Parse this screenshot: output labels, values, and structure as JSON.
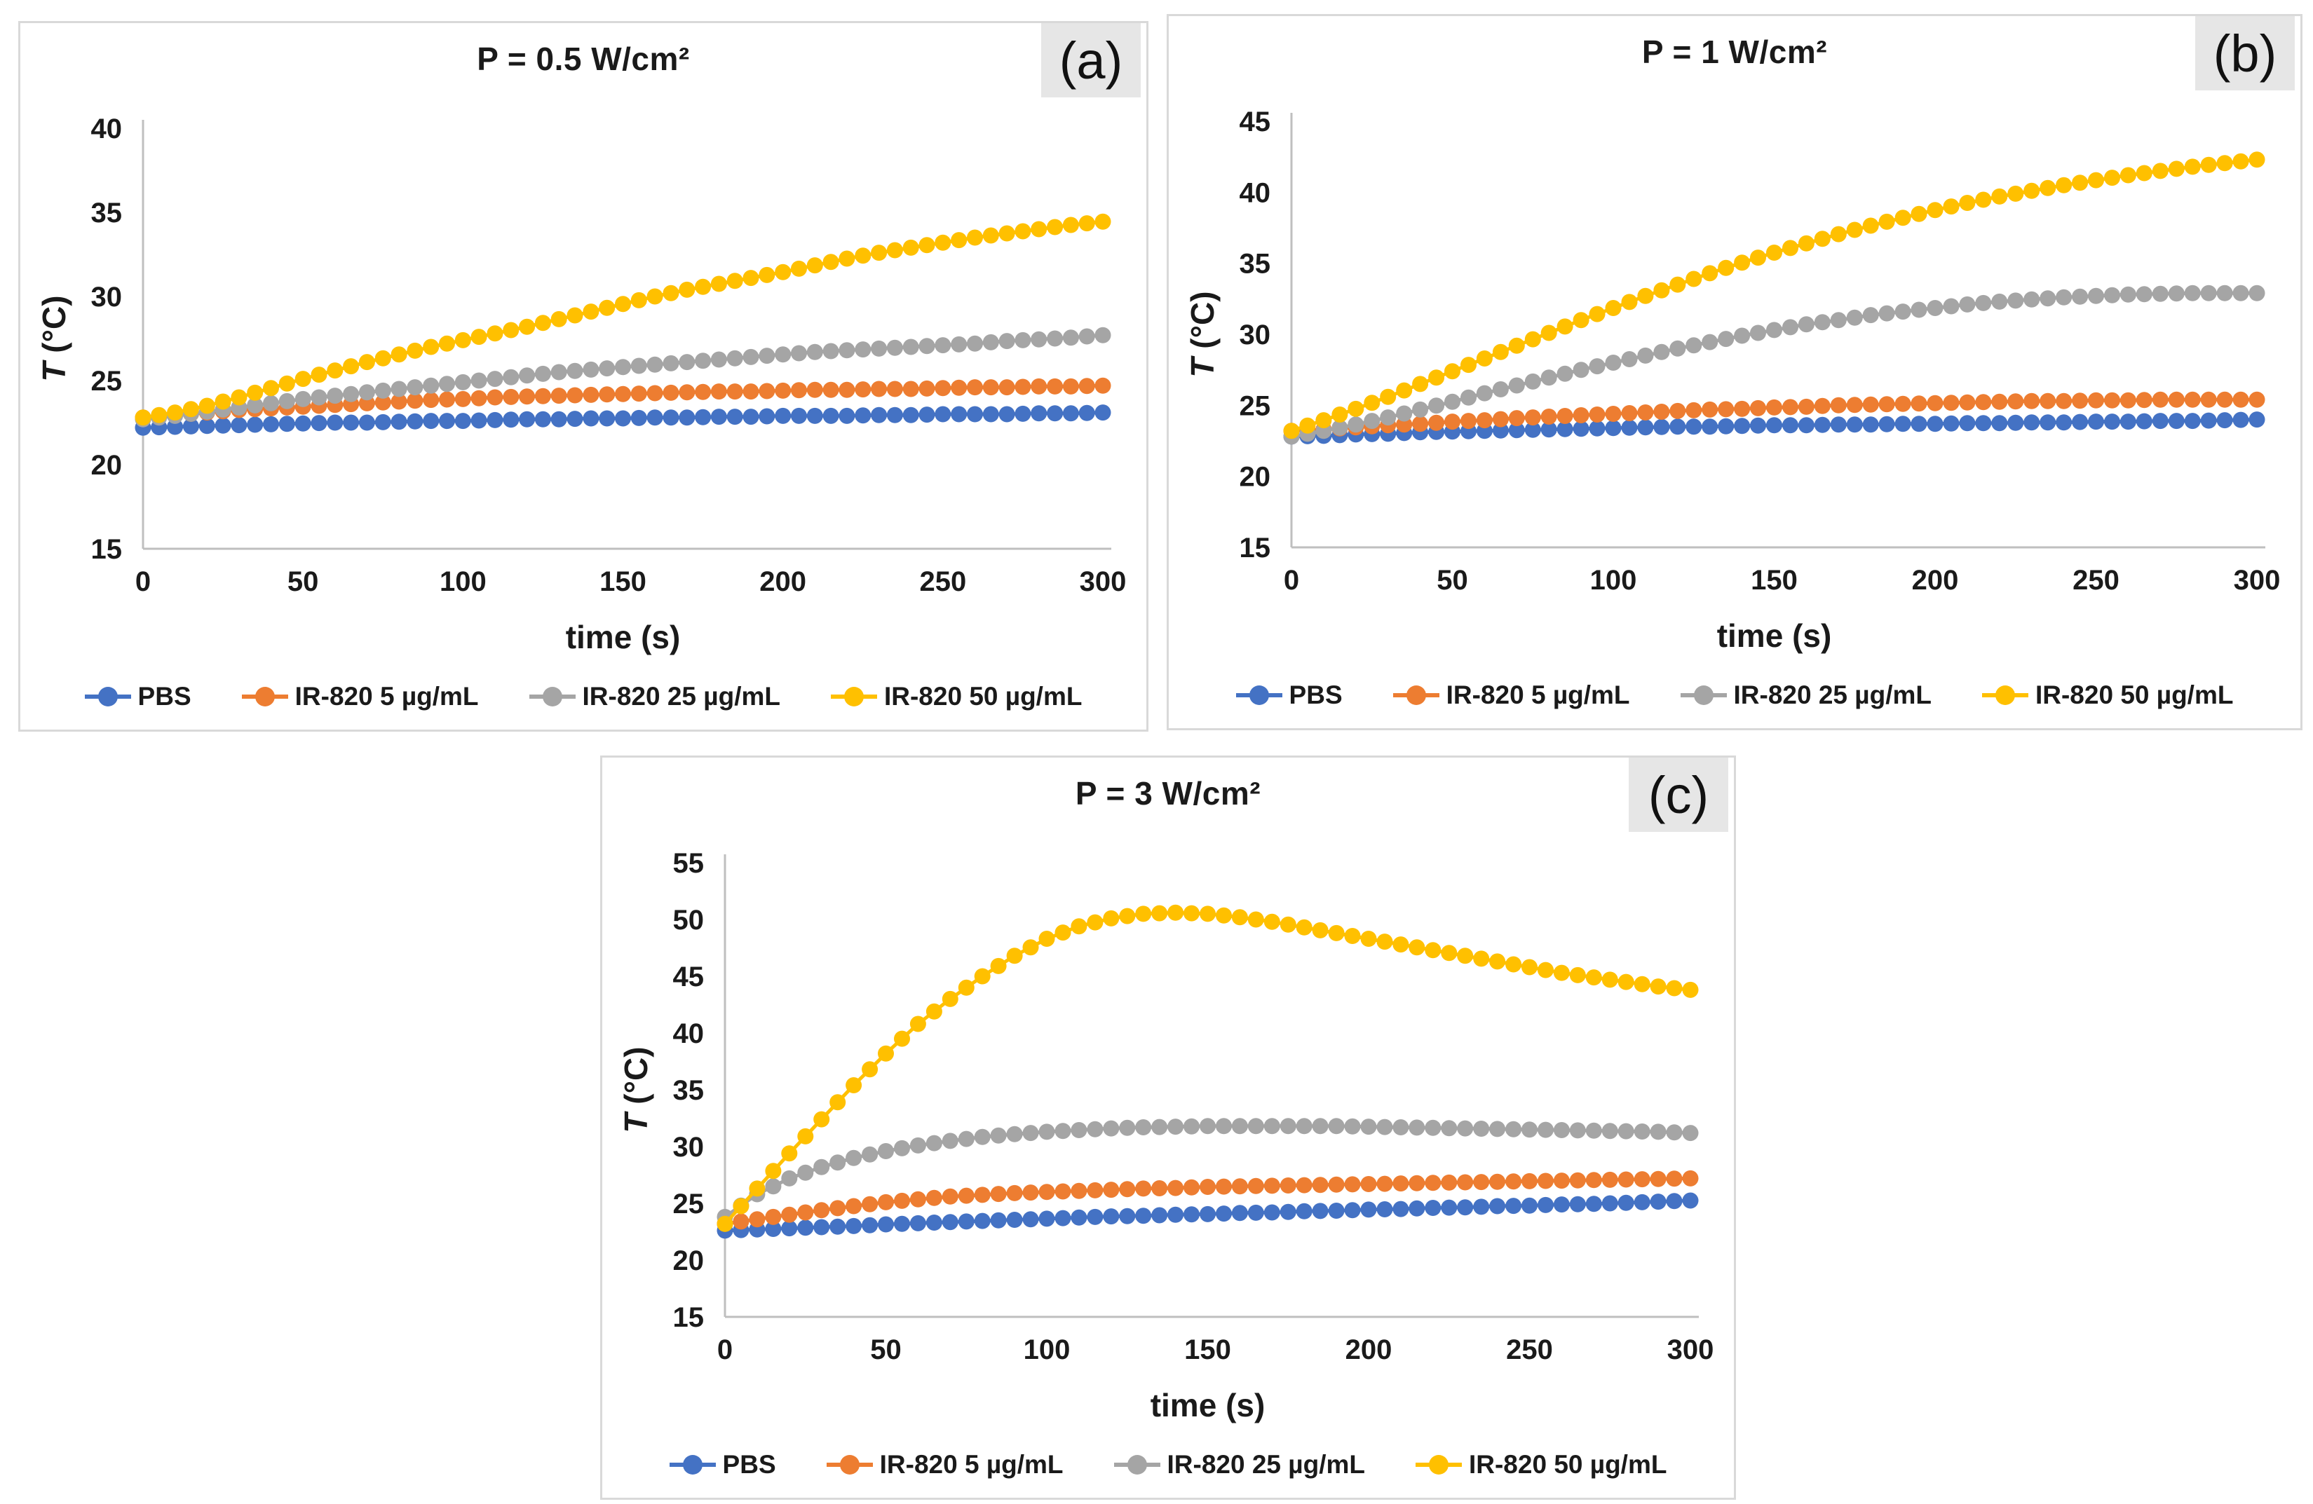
{
  "figure": {
    "background": "#ffffff",
    "panel_border_color": "#d9d9d9",
    "corner_label_bg": "#e6e6e6",
    "axis_line_color": "#bfbfbf",
    "text_color": "#1a1a1a"
  },
  "legend": {
    "items": [
      {
        "label": "PBS",
        "color": "#4472C4"
      },
      {
        "label": "IR-820 5 µg/mL",
        "color": "#ED7D31"
      },
      {
        "label": "IR-820 25 µg/mL",
        "color": "#A5A5A5"
      },
      {
        "label": "IR-820 50 µg/mL",
        "color": "#FFC000"
      }
    ]
  },
  "chart_data": [
    {
      "id": "a",
      "type": "line",
      "panel_label": "(a)",
      "title": "P = 0.5 W/cm²",
      "xlabel": "time (s)",
      "ylabel": "T (°C)",
      "ylabel_italic": "T",
      "ylabel_unit": " (°C)",
      "grid": false,
      "legend_position": "bottom",
      "xlim": [
        0,
        300
      ],
      "ylim": [
        15,
        40
      ],
      "xticks": [
        0,
        50,
        100,
        150,
        200,
        250,
        300
      ],
      "yticks": [
        15,
        20,
        25,
        30,
        35,
        40
      ],
      "x": [
        0,
        10,
        20,
        30,
        40,
        50,
        60,
        70,
        80,
        90,
        100,
        110,
        120,
        130,
        140,
        150,
        160,
        170,
        180,
        190,
        200,
        210,
        220,
        230,
        240,
        250,
        260,
        270,
        280,
        290,
        300
      ],
      "series": [
        {
          "name": "PBS",
          "color": "#4472C4",
          "values": [
            22.2,
            22.25,
            22.3,
            22.35,
            22.4,
            22.45,
            22.5,
            22.5,
            22.55,
            22.6,
            22.6,
            22.65,
            22.7,
            22.7,
            22.75,
            22.75,
            22.8,
            22.8,
            22.85,
            22.85,
            22.9,
            22.9,
            22.9,
            22.95,
            22.95,
            23.0,
            23.0,
            23.0,
            23.05,
            23.05,
            23.1
          ]
        },
        {
          "name": "IR-820 5 µg/mL",
          "color": "#ED7D31",
          "values": [
            22.8,
            22.95,
            23.1,
            23.25,
            23.35,
            23.45,
            23.55,
            23.65,
            23.75,
            23.85,
            23.9,
            24.0,
            24.05,
            24.1,
            24.15,
            24.2,
            24.25,
            24.3,
            24.35,
            24.35,
            24.4,
            24.45,
            24.45,
            24.5,
            24.5,
            24.55,
            24.6,
            24.6,
            24.65,
            24.65,
            24.7
          ]
        },
        {
          "name": "IR-820 25 µg/mL",
          "color": "#A5A5A5",
          "values": [
            22.7,
            22.9,
            23.15,
            23.4,
            23.65,
            23.9,
            24.1,
            24.3,
            24.5,
            24.7,
            24.9,
            25.1,
            25.3,
            25.5,
            25.65,
            25.8,
            25.95,
            26.1,
            26.25,
            26.4,
            26.55,
            26.7,
            26.8,
            26.9,
            27.0,
            27.1,
            27.2,
            27.35,
            27.45,
            27.55,
            27.7
          ]
        },
        {
          "name": "IR-820 50 µg/mL",
          "color": "#FFC000",
          "values": [
            22.8,
            23.1,
            23.5,
            24.0,
            24.55,
            25.1,
            25.6,
            26.1,
            26.55,
            27.0,
            27.4,
            27.8,
            28.2,
            28.65,
            29.1,
            29.55,
            30.0,
            30.4,
            30.75,
            31.1,
            31.45,
            31.85,
            32.25,
            32.6,
            32.9,
            33.2,
            33.5,
            33.75,
            34.0,
            34.25,
            34.45
          ]
        }
      ]
    },
    {
      "id": "b",
      "type": "line",
      "panel_label": "(b)",
      "title": "P = 1 W/cm²",
      "xlabel": "time (s)",
      "ylabel": "T (°C)",
      "ylabel_italic": "T",
      "ylabel_unit": " (°C)",
      "grid": false,
      "legend_position": "bottom",
      "xlim": [
        0,
        300
      ],
      "ylim": [
        15,
        45
      ],
      "xticks": [
        0,
        50,
        100,
        150,
        200,
        250,
        300
      ],
      "yticks": [
        15,
        20,
        25,
        30,
        35,
        40,
        45
      ],
      "x": [
        0,
        10,
        20,
        30,
        40,
        50,
        60,
        70,
        80,
        90,
        100,
        110,
        120,
        130,
        140,
        150,
        160,
        170,
        180,
        190,
        200,
        210,
        220,
        230,
        240,
        250,
        260,
        270,
        280,
        290,
        300
      ],
      "series": [
        {
          "name": "PBS",
          "color": "#4472C4",
          "values": [
            22.8,
            22.85,
            22.95,
            23.0,
            23.1,
            23.15,
            23.2,
            23.25,
            23.3,
            23.35,
            23.4,
            23.45,
            23.5,
            23.5,
            23.55,
            23.6,
            23.6,
            23.65,
            23.65,
            23.7,
            23.7,
            23.75,
            23.75,
            23.8,
            23.8,
            23.85,
            23.85,
            23.9,
            23.9,
            23.95,
            24.0
          ]
        },
        {
          "name": "IR-820 5 µg/mL",
          "color": "#ED7D31",
          "values": [
            23.2,
            23.3,
            23.45,
            23.6,
            23.7,
            23.85,
            23.95,
            24.1,
            24.2,
            24.3,
            24.4,
            24.5,
            24.6,
            24.7,
            24.75,
            24.85,
            24.9,
            25.0,
            25.05,
            25.1,
            25.15,
            25.2,
            25.25,
            25.3,
            25.3,
            25.35,
            25.35,
            25.4,
            25.4,
            25.4,
            25.4
          ]
        },
        {
          "name": "IR-820 25 µg/mL",
          "color": "#A5A5A5",
          "values": [
            22.8,
            23.2,
            23.65,
            24.15,
            24.7,
            25.25,
            25.85,
            26.4,
            26.95,
            27.5,
            28.0,
            28.5,
            29.0,
            29.45,
            29.9,
            30.3,
            30.7,
            31.0,
            31.35,
            31.6,
            31.85,
            32.1,
            32.3,
            32.45,
            32.6,
            32.7,
            32.8,
            32.85,
            32.9,
            32.9,
            32.9
          ]
        },
        {
          "name": "IR-820 50 µg/mL",
          "color": "#FFC000",
          "values": [
            23.2,
            23.95,
            24.75,
            25.6,
            26.5,
            27.4,
            28.3,
            29.2,
            30.1,
            31.0,
            31.85,
            32.7,
            33.5,
            34.3,
            35.05,
            35.75,
            36.4,
            37.05,
            37.65,
            38.2,
            38.75,
            39.25,
            39.7,
            40.1,
            40.5,
            40.85,
            41.2,
            41.5,
            41.8,
            42.05,
            42.3
          ]
        }
      ]
    },
    {
      "id": "c",
      "type": "line",
      "panel_label": "(c)",
      "title": "P = 3 W/cm²",
      "xlabel": "time (s)",
      "ylabel": "T (°C)",
      "ylabel_italic": "T",
      "ylabel_unit": " (°C)",
      "grid": false,
      "legend_position": "bottom",
      "xlim": [
        0,
        300
      ],
      "ylim": [
        15,
        55
      ],
      "xticks": [
        0,
        50,
        100,
        150,
        200,
        250,
        300
      ],
      "yticks": [
        15,
        20,
        25,
        30,
        35,
        40,
        45,
        50,
        55
      ],
      "x": [
        0,
        10,
        20,
        30,
        40,
        50,
        60,
        70,
        80,
        90,
        100,
        110,
        120,
        130,
        140,
        150,
        160,
        170,
        180,
        190,
        200,
        210,
        220,
        230,
        240,
        250,
        260,
        270,
        280,
        290,
        300
      ],
      "series": [
        {
          "name": "PBS",
          "color": "#4472C4",
          "values": [
            22.6,
            22.7,
            22.8,
            22.9,
            23.0,
            23.15,
            23.25,
            23.35,
            23.45,
            23.55,
            23.65,
            23.75,
            23.85,
            23.9,
            24.0,
            24.05,
            24.15,
            24.2,
            24.3,
            24.35,
            24.45,
            24.5,
            24.6,
            24.65,
            24.75,
            24.8,
            24.9,
            24.95,
            25.05,
            25.15,
            25.25
          ]
        },
        {
          "name": "IR-820 5 µg/mL",
          "color": "#ED7D31",
          "values": [
            23.2,
            23.6,
            24.0,
            24.4,
            24.75,
            25.1,
            25.35,
            25.6,
            25.75,
            25.9,
            26.0,
            26.1,
            26.2,
            26.3,
            26.35,
            26.45,
            26.5,
            26.55,
            26.6,
            26.65,
            26.7,
            26.75,
            26.8,
            26.85,
            26.9,
            26.95,
            27.0,
            27.05,
            27.1,
            27.15,
            27.2
          ]
        },
        {
          "name": "IR-820 25 µg/mL",
          "color": "#A5A5A5",
          "values": [
            23.8,
            25.8,
            27.2,
            28.2,
            29.0,
            29.6,
            30.1,
            30.5,
            30.85,
            31.1,
            31.3,
            31.45,
            31.6,
            31.7,
            31.75,
            31.8,
            31.8,
            31.8,
            31.8,
            31.8,
            31.75,
            31.7,
            31.65,
            31.6,
            31.55,
            31.5,
            31.45,
            31.4,
            31.35,
            31.3,
            31.2
          ]
        },
        {
          "name": "IR-820 50 µg/mL",
          "color": "#FFC000",
          "values": [
            23.2,
            26.3,
            29.4,
            32.4,
            35.4,
            38.2,
            40.8,
            43.0,
            45.0,
            46.8,
            48.3,
            49.4,
            50.1,
            50.5,
            50.6,
            50.5,
            50.2,
            49.8,
            49.3,
            48.8,
            48.3,
            47.8,
            47.3,
            46.8,
            46.3,
            45.8,
            45.3,
            44.9,
            44.5,
            44.1,
            43.8
          ]
        }
      ]
    }
  ]
}
